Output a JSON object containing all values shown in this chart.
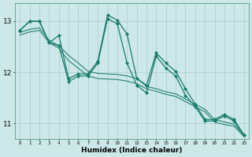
{
  "xlabel": "Humidex (Indice chaleur)",
  "background_color": "#cce8e8",
  "grid_color": "#aacccc",
  "line_color": "#1a7a6e",
  "xlim": [
    -0.5,
    23.5
  ],
  "ylim": [
    10.7,
    13.35
  ],
  "xticks": [
    0,
    1,
    2,
    3,
    4,
    5,
    6,
    7,
    8,
    9,
    10,
    11,
    12,
    13,
    14,
    15,
    16,
    17,
    18,
    19,
    20,
    21,
    22,
    23
  ],
  "yticks": [
    11,
    12,
    13
  ],
  "series1_x": [
    0,
    1,
    2,
    3,
    4,
    5,
    6,
    7,
    8,
    9,
    10,
    11,
    12,
    13,
    14,
    15,
    16,
    17,
    18,
    19,
    20,
    21,
    22,
    23
  ],
  "series1_y": [
    12.82,
    13.0,
    13.0,
    12.58,
    12.72,
    11.88,
    11.97,
    11.97,
    12.22,
    13.12,
    13.02,
    12.75,
    11.88,
    11.75,
    12.38,
    12.18,
    12.02,
    11.68,
    11.38,
    11.08,
    11.08,
    11.18,
    11.08,
    10.78
  ],
  "series2_x": [
    0,
    1,
    2,
    3,
    4,
    5,
    6,
    7,
    8,
    9,
    10,
    11,
    12,
    13,
    14,
    15,
    16,
    17,
    18,
    19,
    20,
    21,
    22,
    23
  ],
  "series2_y": [
    12.82,
    13.0,
    13.0,
    12.58,
    12.52,
    11.82,
    11.93,
    11.93,
    12.18,
    13.05,
    12.95,
    12.18,
    11.75,
    11.6,
    12.32,
    12.08,
    11.93,
    11.55,
    11.33,
    11.05,
    11.05,
    11.15,
    11.05,
    10.78
  ],
  "series3_x": [
    0,
    1,
    2,
    3,
    4,
    5,
    6,
    7,
    8,
    9,
    10,
    11,
    12,
    13,
    14,
    15,
    16,
    17,
    18,
    19,
    20,
    21,
    22,
    23
  ],
  "series3_y": [
    12.78,
    12.84,
    12.87,
    12.63,
    12.52,
    12.33,
    12.18,
    12.02,
    11.98,
    11.97,
    11.96,
    11.93,
    11.88,
    11.73,
    11.68,
    11.62,
    11.58,
    11.48,
    11.38,
    11.28,
    11.08,
    11.03,
    10.99,
    10.77
  ],
  "series4_x": [
    0,
    1,
    2,
    3,
    4,
    5,
    6,
    7,
    8,
    9,
    10,
    11,
    12,
    13,
    14,
    15,
    16,
    17,
    18,
    19,
    20,
    21,
    22,
    23
  ],
  "series4_y": [
    12.73,
    12.79,
    12.82,
    12.58,
    12.47,
    12.23,
    12.08,
    11.93,
    11.88,
    11.87,
    11.86,
    11.83,
    11.78,
    11.68,
    11.63,
    11.57,
    11.53,
    11.43,
    11.33,
    11.23,
    11.03,
    10.98,
    10.95,
    10.75
  ]
}
